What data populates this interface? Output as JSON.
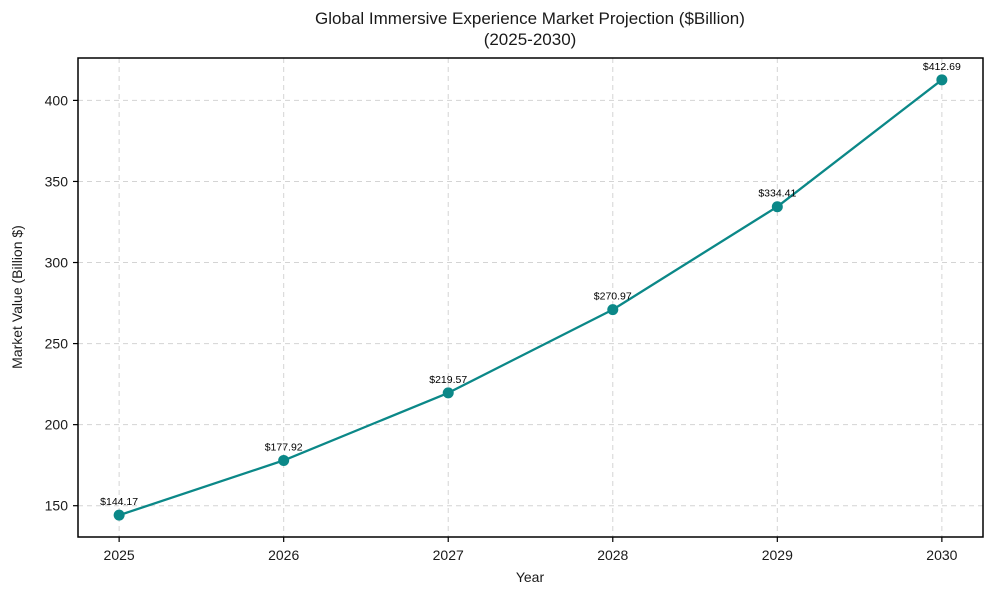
{
  "chart_data": {
    "type": "line",
    "title": "Global Immersive Experience Market Projection ($Billion)",
    "subtitle": "(2025-2030)",
    "xlabel": "Year",
    "ylabel": "Market Value (Billion $)",
    "x": [
      2025,
      2026,
      2027,
      2028,
      2029,
      2030
    ],
    "series": [
      {
        "name": "Market Value",
        "values": [
          144.17,
          177.92,
          219.57,
          270.97,
          334.41,
          412.69
        ],
        "point_labels": [
          "$144.17",
          "$177.92",
          "$219.57",
          "$270.97",
          "$334.41",
          "$412.69"
        ]
      }
    ],
    "xticks": [
      2025,
      2026,
      2027,
      2028,
      2029,
      2030
    ],
    "xtick_labels": [
      "2025",
      "2026",
      "2027",
      "2028",
      "2029",
      "2030"
    ],
    "yticks": [
      150,
      200,
      250,
      300,
      350,
      400
    ],
    "ytick_labels": [
      "150",
      "200",
      "250",
      "300",
      "350",
      "400"
    ],
    "xlim": [
      2024.75,
      2030.25
    ],
    "ylim": [
      130.7,
      426.15
    ],
    "grid": true,
    "legend": "none",
    "colors": {
      "line": "#0b8888",
      "marker": "#0b8888",
      "grid": "#d4d4d4",
      "spine": "#000000",
      "text": "#1a1a1a",
      "background": "#ffffff"
    }
  }
}
